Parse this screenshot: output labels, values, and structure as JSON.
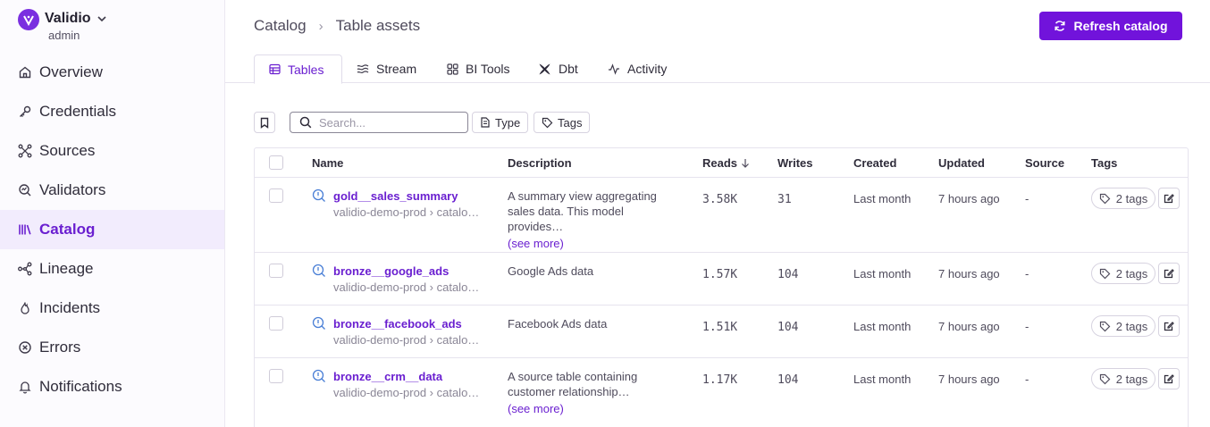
{
  "brand": {
    "name": "Validio",
    "role": "admin"
  },
  "sidebar": {
    "items": [
      {
        "label": "Overview",
        "icon": "home-icon"
      },
      {
        "label": "Credentials",
        "icon": "key-icon"
      },
      {
        "label": "Sources",
        "icon": "sources-icon"
      },
      {
        "label": "Validators",
        "icon": "validator-icon"
      },
      {
        "label": "Catalog",
        "icon": "catalog-icon",
        "active": true
      },
      {
        "label": "Lineage",
        "icon": "lineage-icon"
      },
      {
        "label": "Incidents",
        "icon": "flame-icon"
      },
      {
        "label": "Errors",
        "icon": "error-icon"
      },
      {
        "label": "Notifications",
        "icon": "bell-icon"
      }
    ]
  },
  "header": {
    "breadcrumb": [
      "Catalog",
      "Table assets"
    ],
    "refresh_label": "Refresh catalog"
  },
  "tabs": [
    {
      "label": "Tables",
      "active": true
    },
    {
      "label": "Stream"
    },
    {
      "label": "BI Tools"
    },
    {
      "label": "Dbt"
    },
    {
      "label": "Activity"
    }
  ],
  "toolbar": {
    "search_placeholder": "Search...",
    "type_label": "Type",
    "tags_label": "Tags"
  },
  "table": {
    "columns": [
      "Name",
      "Description",
      "Reads",
      "Writes",
      "Created",
      "Updated",
      "Source",
      "Tags"
    ],
    "sort_column": "Reads",
    "see_more_label": "(see more)",
    "rows": [
      {
        "name": "gold__sales_summary",
        "path": "validio-demo-prod › catalo…",
        "description": "A summary view aggregating sales data. This model provides…",
        "has_see_more": true,
        "reads": "3.58K",
        "writes": "31",
        "created": "Last month",
        "updated": "7 hours ago",
        "source": "-",
        "tags": "2 tags"
      },
      {
        "name": "bronze__google_ads",
        "path": "validio-demo-prod › catalo…",
        "description": "Google Ads data",
        "has_see_more": false,
        "reads": "1.57K",
        "writes": "104",
        "created": "Last month",
        "updated": "7 hours ago",
        "source": "-",
        "tags": "2 tags"
      },
      {
        "name": "bronze__facebook_ads",
        "path": "validio-demo-prod › catalo…",
        "description": "Facebook Ads data",
        "has_see_more": false,
        "reads": "1.51K",
        "writes": "104",
        "created": "Last month",
        "updated": "7 hours ago",
        "source": "-",
        "tags": "2 tags"
      },
      {
        "name": "bronze__crm__data",
        "path": "validio-demo-prod › catalo…",
        "description": "A source table containing customer relationship…",
        "has_see_more": true,
        "reads": "1.17K",
        "writes": "104",
        "created": "Last month",
        "updated": "7 hours ago",
        "source": "-",
        "tags": "2 tags"
      }
    ]
  },
  "colors": {
    "accent": "#7113db",
    "active_bg": "#f2ecfd"
  }
}
